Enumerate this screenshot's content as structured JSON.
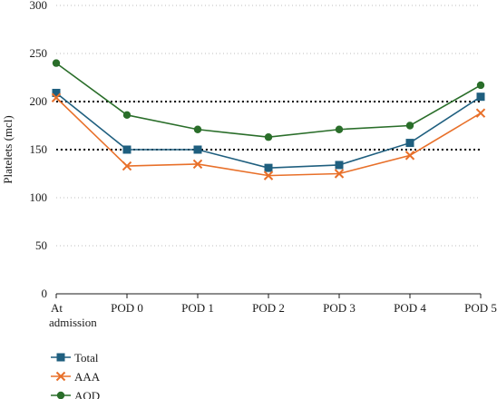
{
  "chart_data": {
    "type": "line",
    "title": "",
    "xlabel": "",
    "ylabel": "Platelets (mcl)",
    "categories": [
      "At admission",
      "POD 0",
      "POD 1",
      "POD 2",
      "POD 3",
      "POD 4",
      "POD 5"
    ],
    "category_lines": [
      [
        "At",
        "admission"
      ],
      [
        "POD 0"
      ],
      [
        "POD 1"
      ],
      [
        "POD 2"
      ],
      [
        "POD 3"
      ],
      [
        "POD 4"
      ],
      [
        "POD 5"
      ]
    ],
    "ylim": [
      0,
      300
    ],
    "yticks": [
      0,
      50,
      100,
      150,
      200,
      250,
      300
    ],
    "grid": "horizontal dotted (light)",
    "reference_lines": [
      150,
      200
    ],
    "legend_position": "bottom-left",
    "series": [
      {
        "name": "Total",
        "marker": "square",
        "color": "#1f5f7f",
        "values": [
          209,
          150,
          150,
          131,
          134,
          157,
          205
        ]
      },
      {
        "name": "AAA",
        "marker": "x",
        "color": "#e8702a",
        "values": [
          204,
          133,
          135,
          123,
          125,
          144,
          188
        ]
      },
      {
        "name": "AOD",
        "marker": "circle",
        "color": "#2a6e2a",
        "values": [
          240,
          186,
          171,
          163,
          171,
          175,
          217
        ]
      }
    ]
  }
}
